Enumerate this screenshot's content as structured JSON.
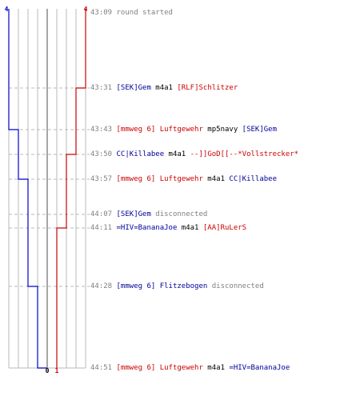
{
  "timeline": {
    "scores": {
      "blue_start": "4",
      "red_start": "4",
      "blue_end": "0",
      "red_end": "1"
    },
    "colors": {
      "blue": "#0000cc",
      "red": "#cc0000",
      "grid": "#b8b8b8",
      "gray": "#808080"
    },
    "events": [
      {
        "time": "43:09",
        "parts": [
          {
            "text": "round started",
            "color": "neutral"
          }
        ]
      },
      {
        "time": "43:31",
        "parts": [
          {
            "text": "[SEK]Gem",
            "color": "blue"
          },
          {
            "text": " m4a1 ",
            "color": "black"
          },
          {
            "text": "[RLF]Schlitzer",
            "color": "red"
          }
        ]
      },
      {
        "time": "43:43",
        "parts": [
          {
            "text": "[mmweg 6] Luftgewehr",
            "color": "red"
          },
          {
            "text": " mp5navy ",
            "color": "black"
          },
          {
            "text": "[SEK]Gem",
            "color": "blue"
          }
        ]
      },
      {
        "time": "43:50",
        "parts": [
          {
            "text": "CC|Killabee",
            "color": "blue"
          },
          {
            "text": " m4a1 ",
            "color": "black"
          },
          {
            "text": "--]]GoD[[--*Vollstrecker*",
            "color": "red"
          }
        ]
      },
      {
        "time": "43:57",
        "parts": [
          {
            "text": "[mmweg 6] Luftgewehr",
            "color": "red"
          },
          {
            "text": " m4a1 ",
            "color": "black"
          },
          {
            "text": "CC|Killabee",
            "color": "blue"
          }
        ]
      },
      {
        "time": "44:07",
        "parts": [
          {
            "text": "[SEK]Gem",
            "color": "blue"
          },
          {
            "text": " disconnected",
            "color": "neutral"
          }
        ]
      },
      {
        "time": "44:11",
        "parts": [
          {
            "text": "=HIV=BananaJoe",
            "color": "blue"
          },
          {
            "text": " m4a1 ",
            "color": "black"
          },
          {
            "text": "[AA]RuLerS",
            "color": "red"
          }
        ]
      },
      {
        "time": "44:28",
        "parts": [
          {
            "text": "[mmweg 6] Flitzebogen",
            "color": "blue"
          },
          {
            "text": " disconnected",
            "color": "neutral"
          }
        ]
      },
      {
        "time": "44:51",
        "parts": [
          {
            "text": "[mmweg 6] Luftgewehr",
            "color": "red"
          },
          {
            "text": " m4a1 ",
            "color": "black"
          },
          {
            "text": "=HIV=BananaJoe",
            "color": "blue"
          }
        ]
      }
    ]
  }
}
